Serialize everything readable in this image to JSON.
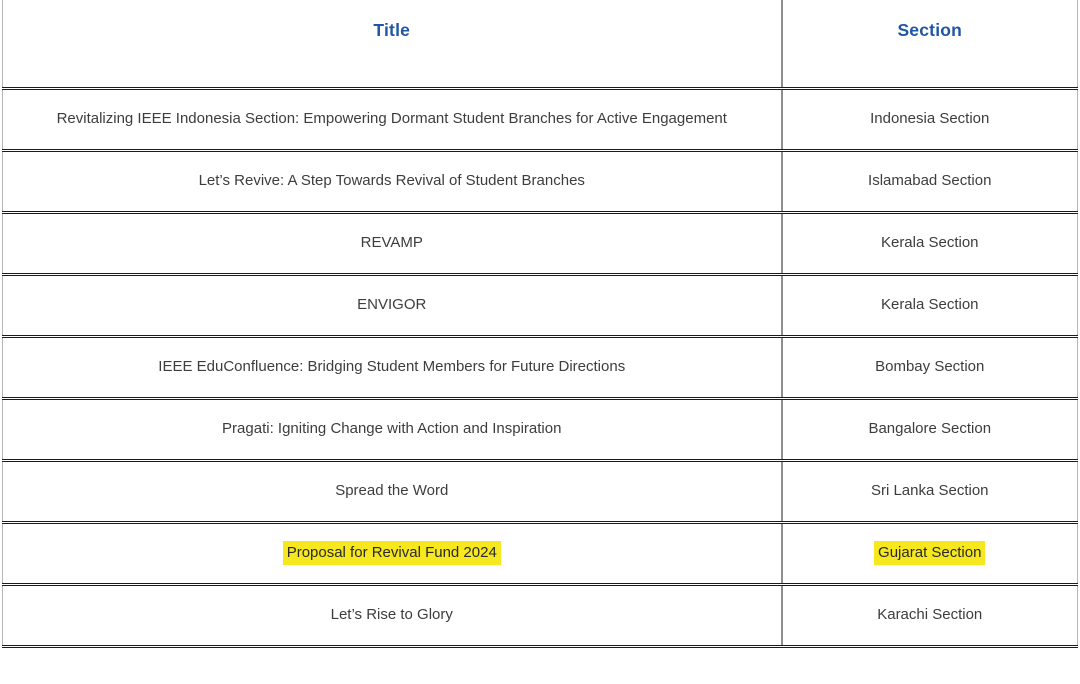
{
  "table": {
    "columns": [
      {
        "label": "Title"
      },
      {
        "label": "Section"
      }
    ],
    "rows": [
      {
        "title": "Revitalizing IEEE Indonesia Section: Empowering Dormant Student Branches for Active Engagement",
        "section": "Indonesia Section",
        "highlighted": false
      },
      {
        "title": "Let’s Revive: A Step Towards Revival of Student Branches",
        "section": "Islamabad Section",
        "highlighted": false
      },
      {
        "title": "REVAMP",
        "section": "Kerala Section",
        "highlighted": false
      },
      {
        "title": "ENVIGOR",
        "section": "Kerala Section",
        "highlighted": false
      },
      {
        "title": "IEEE EduConfluence: Bridging Student Members for Future Directions",
        "section": "Bombay Section",
        "highlighted": false
      },
      {
        "title": "Pragati: Igniting Change with Action and Inspiration",
        "section": "Bangalore Section",
        "highlighted": false
      },
      {
        "title": "Spread the Word",
        "section": "Sri Lanka Section",
        "highlighted": false
      },
      {
        "title": "Proposal for Revival Fund 2024",
        "section": "Gujarat Section",
        "highlighted": true
      },
      {
        "title": "Let’s Rise to Glory",
        "section": "Karachi Section",
        "highlighted": false
      }
    ]
  },
  "colors": {
    "header-blue": "#2056a6",
    "text-dark": "#3d3d3d",
    "highlight-yellow": "#f7e71f",
    "border-dark": "#1b1b1b",
    "border-gray": "#8f8f8f",
    "border-light": "#b5b5b5"
  }
}
